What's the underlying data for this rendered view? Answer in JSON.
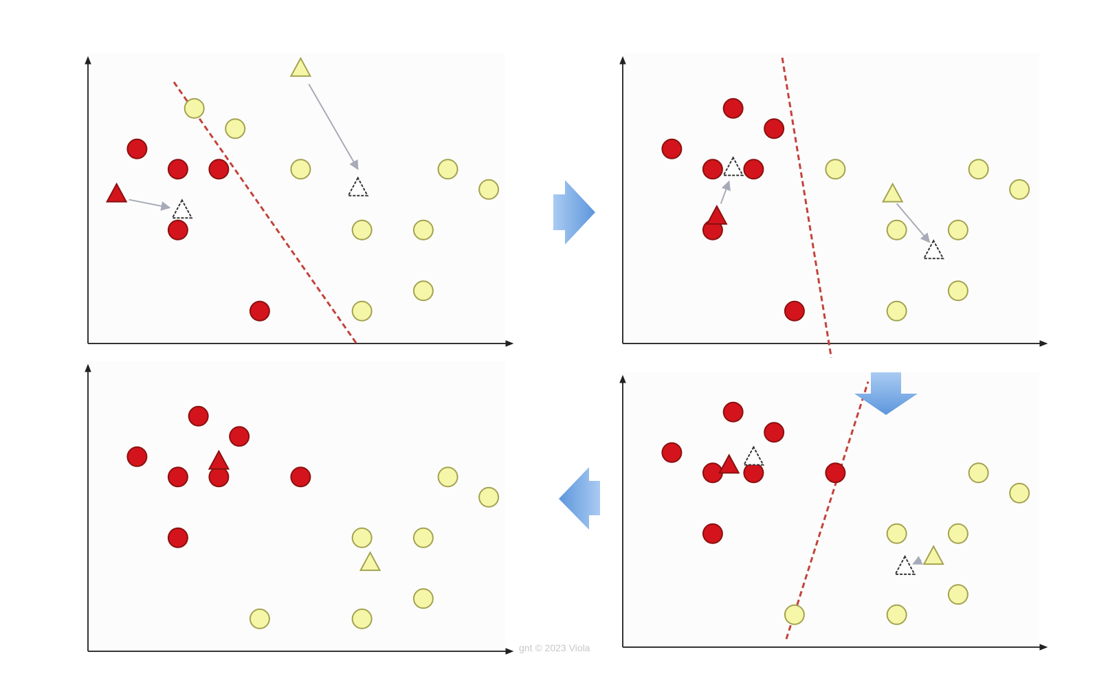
{
  "colors": {
    "red_class": "#d4141c",
    "red_stroke": "#8a1010",
    "yellow_class": "#f6f6a8",
    "yellow_stroke": "#a2a250",
    "centroid_empty": "#ffffff",
    "centroid_stroke": "#333333",
    "boundary": "#c3423b",
    "flow_arrow": "#7aaee6"
  },
  "icons": {
    "flow_arrow": "block-arrow-icon",
    "data_point": "circle",
    "centroid": "triangle"
  },
  "watermark": "gnt © 2023 Viola",
  "panels": [
    {
      "id": "step-1",
      "points": [
        {
          "c": "yellow",
          "x": 2.6,
          "y": 11.6
        },
        {
          "c": "yellow",
          "x": 3.6,
          "y": 10.6
        },
        {
          "c": "red",
          "x": 1.2,
          "y": 9.6
        },
        {
          "c": "red",
          "x": 2.2,
          "y": 8.6
        },
        {
          "c": "red",
          "x": 3.2,
          "y": 8.6
        },
        {
          "c": "yellow",
          "x": 5.2,
          "y": 8.6
        },
        {
          "c": "yellow",
          "x": 8.8,
          "y": 8.6
        },
        {
          "c": "yellow",
          "x": 9.8,
          "y": 7.6
        },
        {
          "c": "red",
          "x": 2.2,
          "y": 5.6
        },
        {
          "c": "yellow",
          "x": 6.7,
          "y": 5.6
        },
        {
          "c": "yellow",
          "x": 8.2,
          "y": 5.6
        },
        {
          "c": "yellow",
          "x": 8.2,
          "y": 2.6
        },
        {
          "c": "red",
          "x": 4.2,
          "y": 1.6
        },
        {
          "c": "yellow",
          "x": 6.7,
          "y": 1.6
        }
      ],
      "centroids": [
        {
          "c": "red",
          "x": 0.7,
          "y": 7.4
        },
        {
          "c": "empty",
          "x": 2.3,
          "y": 6.6
        },
        {
          "c": "yellow",
          "x": 5.2,
          "y": 13.6
        },
        {
          "c": "empty",
          "x": 6.6,
          "y": 7.7
        }
      ],
      "moves": [
        {
          "from": [
            1.0,
            7.1
          ],
          "to": [
            2.0,
            6.7
          ]
        },
        {
          "from": [
            5.4,
            12.8
          ],
          "to": [
            6.6,
            8.6
          ]
        }
      ],
      "boundary": {
        "from": [
          2.1,
          12.9
        ],
        "to": [
          6.6,
          -0.1
        ]
      }
    },
    {
      "id": "step-2",
      "points": [
        {
          "c": "red",
          "x": 2.7,
          "y": 11.6
        },
        {
          "c": "red",
          "x": 3.7,
          "y": 10.6
        },
        {
          "c": "red",
          "x": 1.2,
          "y": 9.6
        },
        {
          "c": "red",
          "x": 2.2,
          "y": 8.6
        },
        {
          "c": "red",
          "x": 3.2,
          "y": 8.6
        },
        {
          "c": "yellow",
          "x": 5.2,
          "y": 8.6
        },
        {
          "c": "yellow",
          "x": 8.7,
          "y": 8.6
        },
        {
          "c": "yellow",
          "x": 9.7,
          "y": 7.6
        },
        {
          "c": "red",
          "x": 2.2,
          "y": 5.6
        },
        {
          "c": "yellow",
          "x": 6.7,
          "y": 5.6
        },
        {
          "c": "yellow",
          "x": 8.2,
          "y": 5.6
        },
        {
          "c": "yellow",
          "x": 8.2,
          "y": 2.6
        },
        {
          "c": "red",
          "x": 4.2,
          "y": 1.6
        },
        {
          "c": "yellow",
          "x": 6.7,
          "y": 1.6
        }
      ],
      "centroids": [
        {
          "c": "empty",
          "x": 2.7,
          "y": 8.7
        },
        {
          "c": "red",
          "x": 2.3,
          "y": 6.3
        },
        {
          "c": "yellow",
          "x": 6.6,
          "y": 7.4
        },
        {
          "c": "empty",
          "x": 7.6,
          "y": 4.6
        }
      ],
      "moves": [
        {
          "from": [
            2.4,
            6.9
          ],
          "to": [
            2.6,
            8.0
          ]
        },
        {
          "from": [
            6.7,
            6.9
          ],
          "to": [
            7.5,
            5.0
          ]
        }
      ],
      "boundary": {
        "from": [
          3.9,
          14.1
        ],
        "to": [
          5.1,
          -0.7
        ]
      }
    },
    {
      "id": "step-3",
      "points": [
        {
          "c": "red",
          "x": 2.7,
          "y": 11.6
        },
        {
          "c": "red",
          "x": 3.7,
          "y": 10.6
        },
        {
          "c": "red",
          "x": 1.2,
          "y": 9.6
        },
        {
          "c": "red",
          "x": 2.2,
          "y": 8.6
        },
        {
          "c": "red",
          "x": 3.2,
          "y": 8.6
        },
        {
          "c": "red",
          "x": 5.2,
          "y": 8.6
        },
        {
          "c": "yellow",
          "x": 8.7,
          "y": 8.6
        },
        {
          "c": "yellow",
          "x": 9.7,
          "y": 7.6
        },
        {
          "c": "red",
          "x": 2.2,
          "y": 5.6
        },
        {
          "c": "yellow",
          "x": 6.7,
          "y": 5.6
        },
        {
          "c": "yellow",
          "x": 8.2,
          "y": 5.6
        },
        {
          "c": "yellow",
          "x": 8.2,
          "y": 2.6
        },
        {
          "c": "yellow",
          "x": 4.2,
          "y": 1.6
        },
        {
          "c": "yellow",
          "x": 6.7,
          "y": 1.6
        }
      ],
      "centroids": [
        {
          "c": "red",
          "x": 2.6,
          "y": 9.0
        },
        {
          "c": "empty",
          "x": 3.2,
          "y": 9.4
        },
        {
          "c": "yellow",
          "x": 7.6,
          "y": 4.5
        },
        {
          "c": "empty",
          "x": 6.9,
          "y": 4.0
        }
      ],
      "moves": [
        {
          "from": [
            7.3,
            4.3
          ],
          "to": [
            7.1,
            4.1
          ]
        }
      ],
      "boundary": {
        "from": [
          4.0,
          0.4
        ],
        "to": [
          6.0,
          13.1
        ]
      }
    },
    {
      "id": "step-4",
      "points": [
        {
          "c": "red",
          "x": 2.7,
          "y": 11.6
        },
        {
          "c": "red",
          "x": 3.7,
          "y": 10.6
        },
        {
          "c": "red",
          "x": 1.2,
          "y": 9.6
        },
        {
          "c": "red",
          "x": 2.2,
          "y": 8.6
        },
        {
          "c": "red",
          "x": 3.2,
          "y": 8.6
        },
        {
          "c": "red",
          "x": 5.2,
          "y": 8.6
        },
        {
          "c": "yellow",
          "x": 8.8,
          "y": 8.6
        },
        {
          "c": "yellow",
          "x": 9.8,
          "y": 7.6
        },
        {
          "c": "red",
          "x": 2.2,
          "y": 5.6
        },
        {
          "c": "yellow",
          "x": 6.7,
          "y": 5.6
        },
        {
          "c": "yellow",
          "x": 8.2,
          "y": 5.6
        },
        {
          "c": "yellow",
          "x": 8.2,
          "y": 2.6
        },
        {
          "c": "yellow",
          "x": 4.2,
          "y": 1.6
        },
        {
          "c": "yellow",
          "x": 6.7,
          "y": 1.6
        }
      ],
      "centroids": [
        {
          "c": "red",
          "x": 3.2,
          "y": 9.4
        },
        {
          "c": "yellow",
          "x": 6.9,
          "y": 4.4
        }
      ],
      "moves": [],
      "boundary": null
    }
  ],
  "flow": [
    {
      "from": "step-1",
      "to": "step-2",
      "dir": "right"
    },
    {
      "from": "step-2",
      "to": "step-3",
      "dir": "down"
    },
    {
      "from": "step-3",
      "to": "step-4",
      "dir": "left"
    }
  ]
}
